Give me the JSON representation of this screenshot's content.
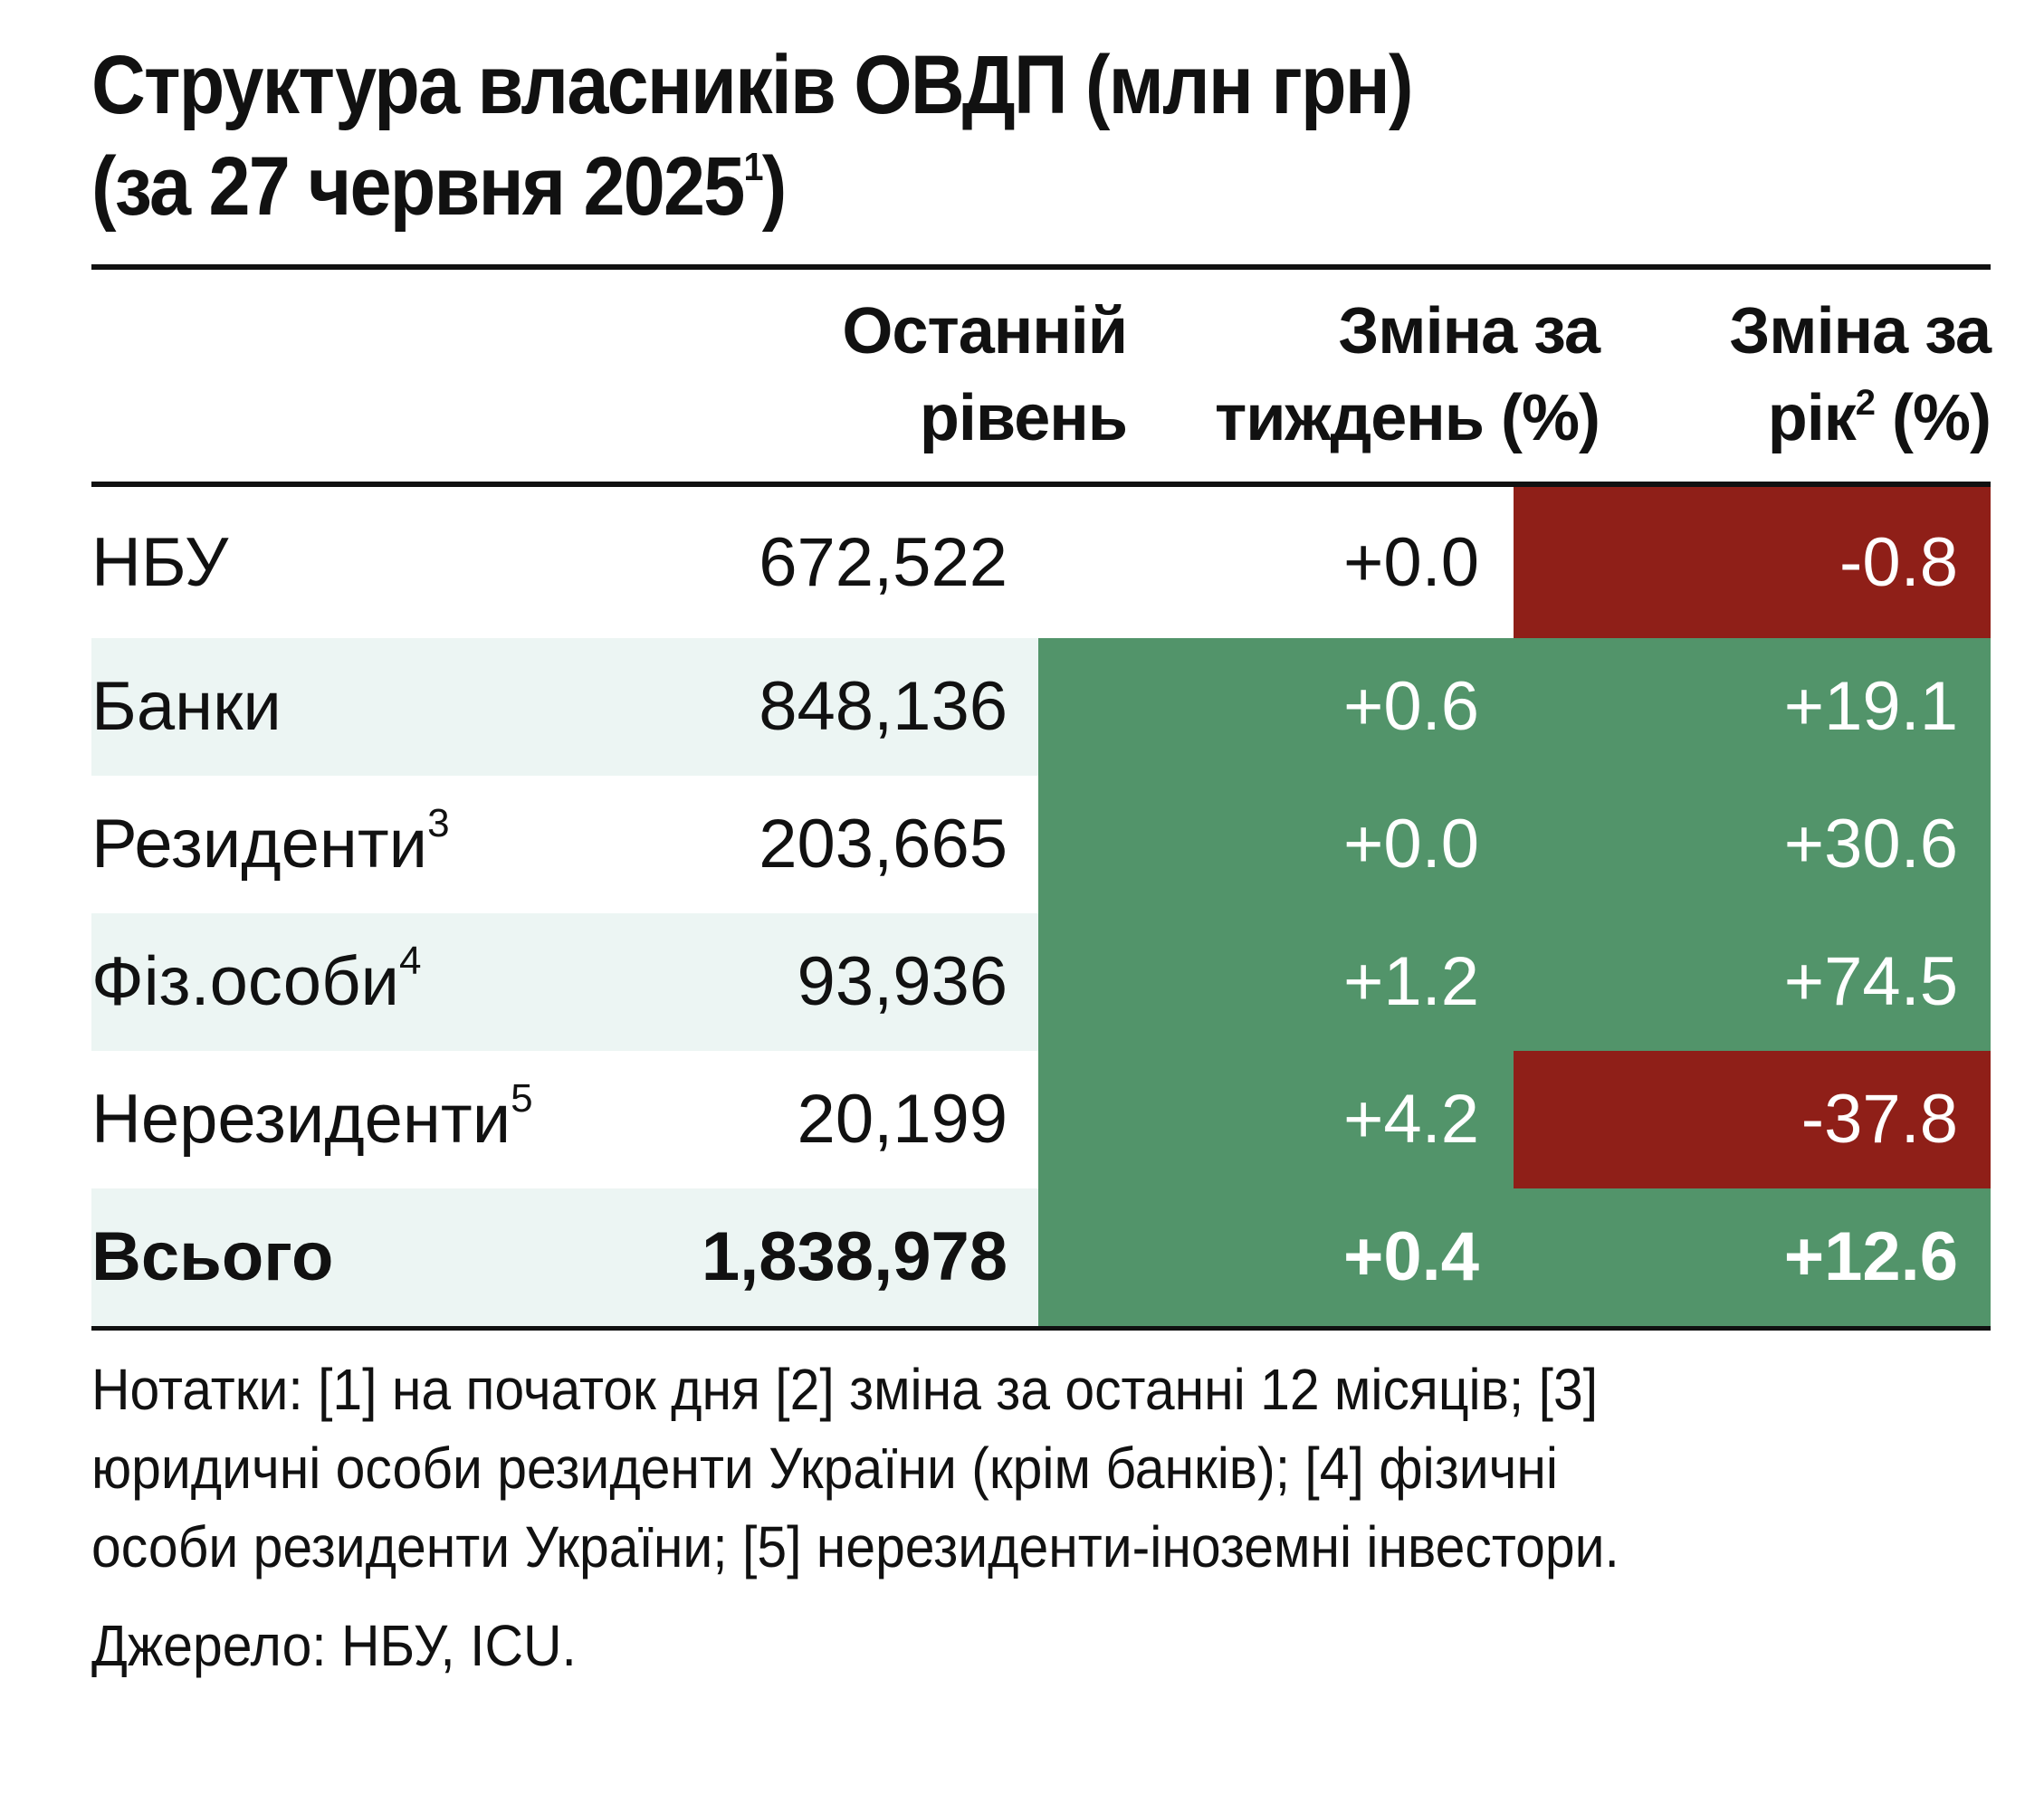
{
  "title": {
    "line1": "Структура власників ОВДП (млн грн)",
    "line2": "(за 27 червня 2025",
    "line2_sup": "1",
    "line2_end": ")"
  },
  "columns": {
    "level": [
      "Останній",
      "рівень"
    ],
    "week": [
      "Зміна за",
      "тиждень (%)"
    ],
    "year_line1": "Зміна за",
    "year_line2_a": "рік",
    "year_line2_sup": "2",
    "year_line2_b": " (%)"
  },
  "rows": [
    {
      "label": "НБУ",
      "sup": "",
      "level": "672,522",
      "week": "+0.0",
      "year": "-0.8"
    },
    {
      "label": "Банки",
      "sup": "",
      "level": "848,136",
      "week": "+0.6",
      "year": "+19.1"
    },
    {
      "label": "Резиденти",
      "sup": "3",
      "level": "203,665",
      "week": "+0.0",
      "year": "+30.6"
    },
    {
      "label": "Фіз.особи",
      "sup": "4",
      "level": "93,936",
      "week": "+1.2",
      "year": "+74.5"
    },
    {
      "label": "Нерезиденти",
      "sup": "5",
      "level": "20,199",
      "week": "+4.2",
      "year": "-37.8"
    },
    {
      "label": "Всього",
      "sup": "",
      "level": "1,838,978",
      "week": "+0.4",
      "year": "+12.6"
    }
  ],
  "notes": [
    "Нотатки: [1] на початок дня [2] зміна за останні 12 місяців; [3]",
    "юридичні особи  резиденти України (крім банків); [4] фізичні",
    "особи резиденти України; [5] нерезиденти-іноземні інвестори."
  ],
  "source": "Джерело: НБУ, ICU.",
  "colors": {
    "positive": "#52946a",
    "negative": "#8f1f18",
    "row_shade": "#ecf5f3"
  }
}
